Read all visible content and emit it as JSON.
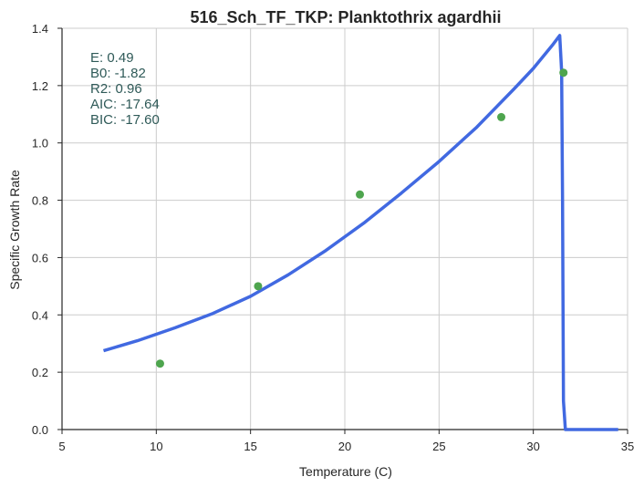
{
  "chart_data": {
    "type": "scatter",
    "title": "516_Sch_TF_TKP: Planktothrix agardhii",
    "xlabel": "Temperature (C)",
    "ylabel": "Specific Growth Rate",
    "xlim": [
      5,
      35
    ],
    "ylim": [
      0,
      1.4
    ],
    "x_ticks": [
      "5",
      "10",
      "15",
      "20",
      "25",
      "30",
      "35"
    ],
    "y_ticks": [
      "0.0",
      "0.2",
      "0.4",
      "0.6",
      "0.8",
      "1.0",
      "1.2",
      "1.4"
    ],
    "grid": true,
    "stats": [
      "E:  0.49",
      "B0:  -1.82",
      "R2:  0.96",
      "AIC: -17.64",
      "BIC: -17.60"
    ],
    "colors": {
      "fit": "#4169e1",
      "points": "#4ea54e",
      "stats_text": "#2f5a58",
      "grid": "#cccccc"
    },
    "series": [
      {
        "type": "scatter",
        "x": [
          10.2,
          15.4,
          20.8,
          28.3,
          31.6
        ],
        "y": [
          0.23,
          0.5,
          0.82,
          1.09,
          1.245
        ]
      },
      {
        "type": "line",
        "x": [
          7.2,
          9,
          11,
          13,
          15,
          17,
          19,
          21,
          23,
          25,
          27,
          29,
          30,
          31,
          31.4,
          31.5,
          31.55,
          31.6,
          31.7,
          34.5
        ],
        "y": [
          0.275,
          0.31,
          0.355,
          0.405,
          0.465,
          0.54,
          0.625,
          0.72,
          0.825,
          0.935,
          1.055,
          1.19,
          1.26,
          1.34,
          1.375,
          1.25,
          0.8,
          0.1,
          0.0,
          0.0
        ]
      }
    ]
  }
}
